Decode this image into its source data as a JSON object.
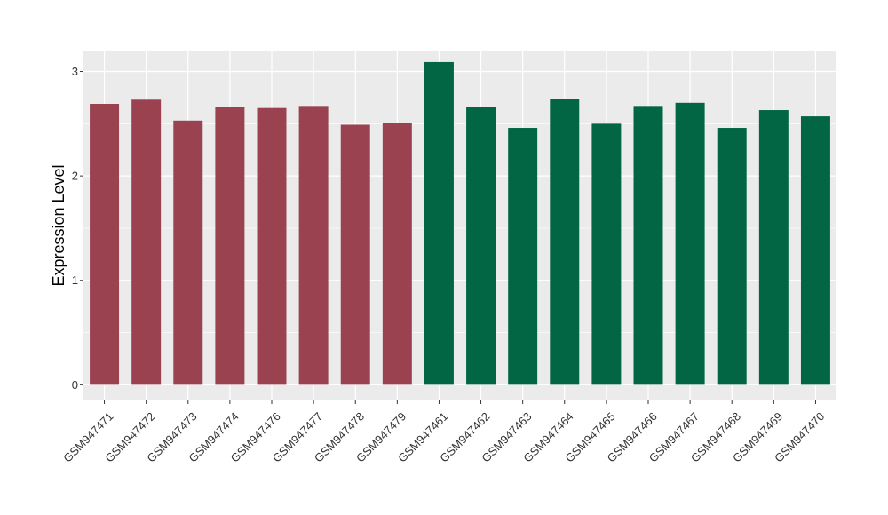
{
  "chart_data": {
    "type": "bar",
    "title": "",
    "xlabel": "",
    "ylabel": "Expression Level",
    "ylim": [
      -0.15,
      3.2
    ],
    "yticks": [
      0,
      1,
      2,
      3
    ],
    "grid": true,
    "panel_background": "#EBEBEB",
    "grid_color": "#FFFFFF",
    "categories": [
      "GSM947471",
      "GSM947472",
      "GSM947473",
      "GSM947474",
      "GSM947476",
      "GSM947477",
      "GSM947478",
      "GSM947479",
      "GSM947461",
      "GSM947462",
      "GSM947463",
      "GSM947464",
      "GSM947465",
      "GSM947466",
      "GSM947467",
      "GSM947468",
      "GSM947469",
      "GSM947470"
    ],
    "values": [
      2.69,
      2.73,
      2.53,
      2.66,
      2.65,
      2.67,
      2.49,
      2.51,
      3.09,
      2.66,
      2.46,
      2.74,
      2.5,
      2.67,
      2.7,
      2.46,
      2.63,
      2.57
    ],
    "bar_colors": [
      "#9A4250",
      "#9A4250",
      "#9A4250",
      "#9A4250",
      "#9A4250",
      "#9A4250",
      "#9A4250",
      "#9A4250",
      "#026644",
      "#026644",
      "#026644",
      "#026644",
      "#026644",
      "#026644",
      "#026644",
      "#026644",
      "#026644",
      "#026644"
    ]
  }
}
